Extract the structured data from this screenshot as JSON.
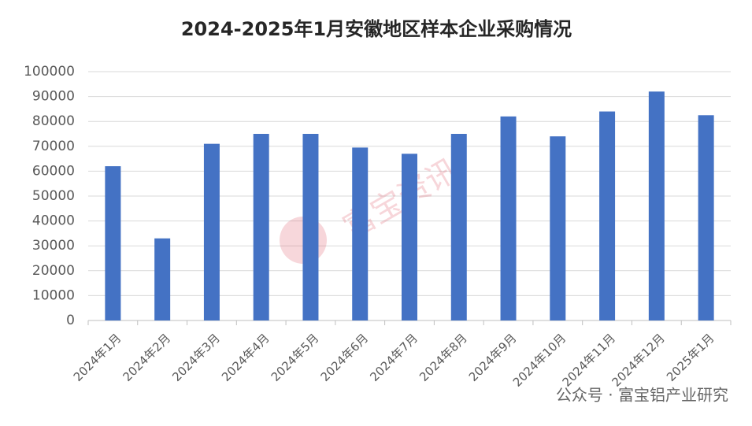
{
  "chart_data": {
    "type": "bar",
    "title": "2024-2025年1月安徽地区样本企业采购情况",
    "categories": [
      "2024年1月",
      "2024年2月",
      "2024年3月",
      "2024年4月",
      "2024年5月",
      "2024年6月",
      "2024年7月",
      "2024年8月",
      "2024年9月",
      "2024年10月",
      "2024年11月",
      "2024年12月",
      "2025年1月"
    ],
    "values": [
      62000,
      33000,
      71000,
      75000,
      75000,
      69500,
      67000,
      75000,
      82000,
      74000,
      84000,
      92000,
      82500
    ],
    "color": "#4472c4",
    "ylim": [
      0,
      100000
    ],
    "yticks": [
      0,
      10000,
      20000,
      30000,
      40000,
      50000,
      60000,
      70000,
      80000,
      90000,
      100000
    ],
    "grid": true,
    "watermark": "富宝资讯",
    "source_note": "公众号 · 富宝铝产业研究"
  }
}
